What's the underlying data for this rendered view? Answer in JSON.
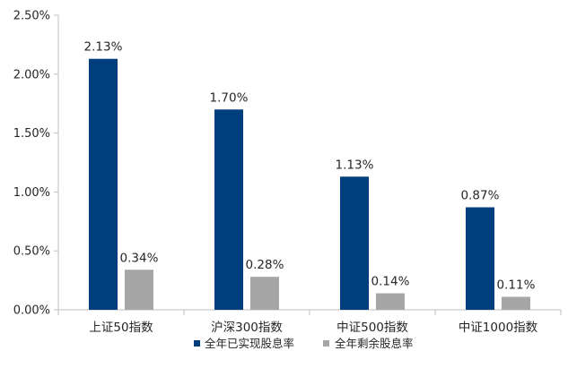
{
  "chart_data": {
    "type": "bar",
    "title": "",
    "xlabel": "",
    "ylabel": "",
    "categories": [
      "上证50指数",
      "沪深300指数",
      "中证500指数",
      "中证1000指数"
    ],
    "series": [
      {
        "name": "全年已实现股息率",
        "color": "#003e7e",
        "values": [
          2.13,
          1.7,
          1.13,
          0.87
        ],
        "labels": [
          "2.13%",
          "1.70%",
          "1.13%",
          "0.87%"
        ]
      },
      {
        "name": "全年剩余股息率",
        "color": "#a6a6a6",
        "values": [
          0.34,
          0.28,
          0.14,
          0.11
        ],
        "labels": [
          "0.34%",
          "0.28%",
          "0.14%",
          "0.11%"
        ]
      }
    ],
    "ylim": [
      0,
      2.5
    ],
    "yticks": [
      0,
      0.5,
      1.0,
      1.5,
      2.0,
      2.5
    ],
    "ytick_labels": [
      "0.00%",
      "0.50%",
      "1.00%",
      "1.50%",
      "2.00%",
      "2.50%"
    ],
    "grid": false,
    "legend_position": "bottom",
    "axis_color": "#bfbfbf"
  }
}
